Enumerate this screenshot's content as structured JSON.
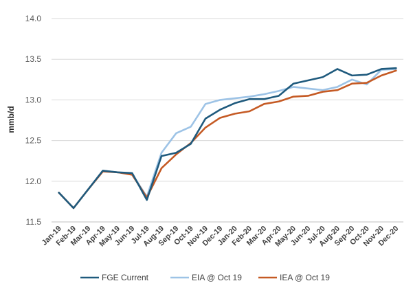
{
  "chart_data": {
    "type": "line",
    "title": "",
    "xlabel": "",
    "ylabel": "mmb/d",
    "ylim": [
      11.5,
      14.0
    ],
    "yticks": [
      "11.5",
      "12.0",
      "12.5",
      "13.0",
      "13.5",
      "14.0"
    ],
    "categories": [
      "Jan-19",
      "Feb-19",
      "Mar-19",
      "Apr-19",
      "May-19",
      "Jun-19",
      "Jul-19",
      "Aug-19",
      "Sep-19",
      "Oct-19",
      "Nov-19",
      "Dec-19",
      "Jan-20",
      "Feb-20",
      "Mar-20",
      "Apr-20",
      "May-20",
      "Jun-20",
      "Jul-20",
      "Aug-20",
      "Sep-20",
      "Oct-20",
      "Nov-20",
      "Dec-20"
    ],
    "grid": "horizontal",
    "legend_position": "bottom",
    "series": [
      {
        "name": "FGE Current",
        "color": "#1f5a7d",
        "values": [
          11.86,
          11.67,
          11.9,
          12.13,
          12.11,
          12.1,
          11.77,
          12.31,
          12.35,
          12.46,
          12.77,
          12.88,
          12.96,
          13.01,
          13.01,
          13.05,
          13.2,
          13.24,
          13.28,
          13.38,
          13.3,
          13.31,
          13.38,
          13.39
        ]
      },
      {
        "name": "EIA @ Oct 19",
        "color": "#9dc3e6",
        "values": [
          11.86,
          11.67,
          11.9,
          12.13,
          12.11,
          12.09,
          11.81,
          12.35,
          12.59,
          12.67,
          12.95,
          13.0,
          13.02,
          13.04,
          13.07,
          13.11,
          13.16,
          13.14,
          13.12,
          13.16,
          13.25,
          13.19,
          13.37,
          13.38
        ]
      },
      {
        "name": "IEA @ Oct 19",
        "color": "#c55a24",
        "values": [
          11.86,
          11.67,
          11.9,
          12.12,
          12.11,
          12.08,
          11.8,
          12.16,
          12.33,
          12.47,
          12.66,
          12.78,
          12.83,
          12.86,
          12.95,
          12.98,
          13.04,
          13.05,
          13.1,
          13.12,
          13.2,
          13.21,
          13.3,
          13.36
        ]
      }
    ]
  }
}
